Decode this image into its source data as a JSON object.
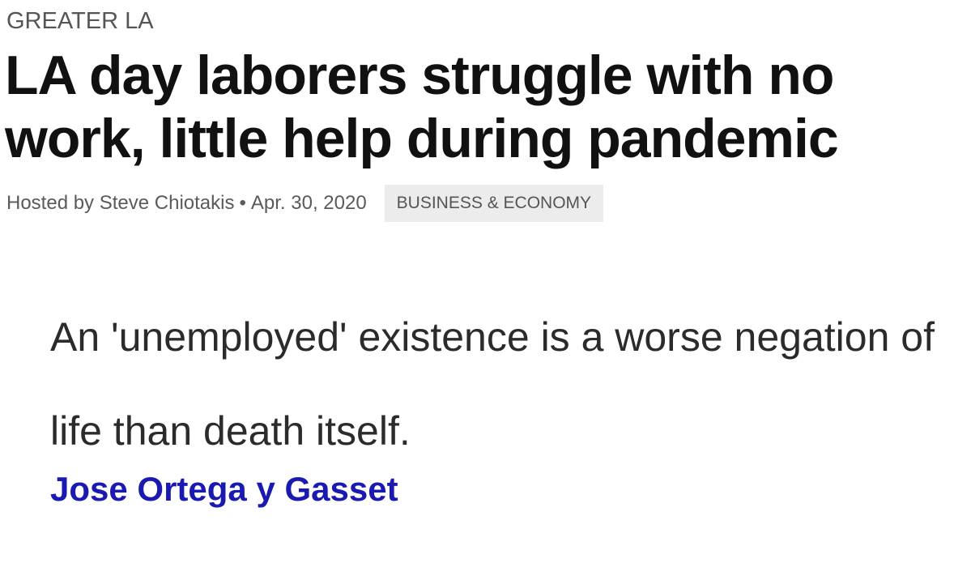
{
  "article": {
    "kicker": "GREATER LA",
    "headline": "LA day laborers struggle with no work, little help during pandemic",
    "byline": "Hosted by Steve Chiotakis",
    "separator": "•",
    "date": "Apr. 30, 2020",
    "category": "BUSINESS & ECONOMY"
  },
  "quote": {
    "text": "An 'unemployed' existence is a worse negation of life than death itself.",
    "author": "Jose Ortega y Gasset",
    "author_color": "#1a19b0"
  }
}
